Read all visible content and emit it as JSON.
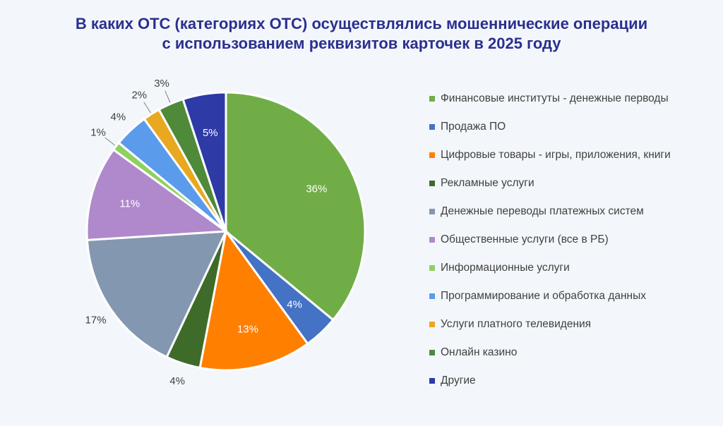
{
  "chart_data": {
    "type": "pie",
    "title": [
      "В каких ОТС (категориях ОТС) осуществлялись мошеннические операции",
      "с использованием реквизитов карточек в 2025 году"
    ],
    "legend_position": "right",
    "start": "12 o'clock, clockwise",
    "slices": [
      {
        "label": "Финансовые институты - денежные перводы",
        "value": 36,
        "data_label": "36%",
        "color": "#70ad47",
        "label_pos": "inside"
      },
      {
        "label": "Продажа ПО",
        "value": 4,
        "data_label": "4%",
        "color": "#4472c4",
        "label_pos": "inside"
      },
      {
        "label": "Цифровые товары - игры, приложения, книги",
        "value": 13,
        "data_label": "13%",
        "color": "#ff7f00",
        "label_pos": "inside"
      },
      {
        "label": "Рекламные услуги",
        "value": 4,
        "data_label": "4%",
        "color": "#3f6b2a",
        "label_pos": "outside"
      },
      {
        "label": "Денежные переводы платежных систем",
        "value": 17,
        "data_label": "17%",
        "color": "#8497b0",
        "label_pos": "outside"
      },
      {
        "label": "Общественные услуги (все в РБ)",
        "value": 11,
        "data_label": "11%",
        "color": "#b088cc",
        "label_pos": "inside"
      },
      {
        "label": "Информационные услуги",
        "value": 1,
        "data_label": "1%",
        "color": "#8fd060",
        "label_pos": "outside"
      },
      {
        "label": "Программирование и обработка данных",
        "value": 4,
        "data_label": "4%",
        "color": "#5b9bec",
        "label_pos": "outside"
      },
      {
        "label": "Услуги платного телевидения",
        "value": 2,
        "data_label": "2%",
        "color": "#e8a820",
        "label_pos": "outside"
      },
      {
        "label": "Онлайн казино",
        "value": 3,
        "data_label": "3%",
        "color": "#4e8a3a",
        "label_pos": "outside"
      },
      {
        "label": "Другие",
        "value": 5,
        "data_label": "5%",
        "color": "#2e3aa6",
        "label_pos": "inside"
      }
    ]
  }
}
